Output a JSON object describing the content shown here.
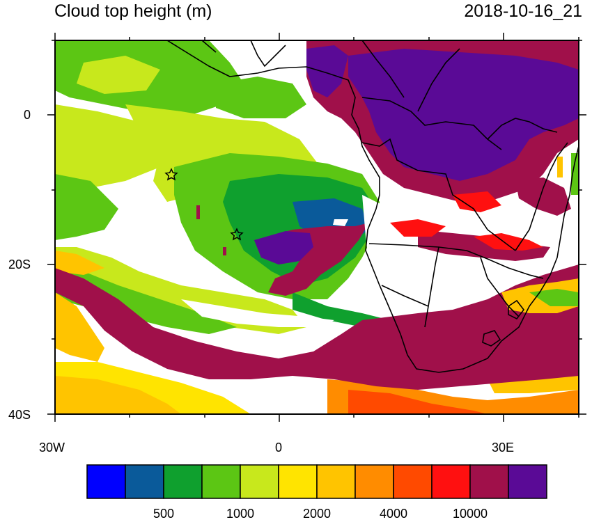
{
  "title": "Cloud top height (m)",
  "timestamp": "2018-10-16_21",
  "map": {
    "extent": {
      "lon": [
        -30,
        40
      ],
      "lat": [
        -40,
        10
      ]
    },
    "lon_ticks": [
      "30W",
      "0",
      "30E"
    ],
    "lat_ticks": [
      "0",
      "20S",
      "40S"
    ],
    "markers": [
      "star",
      "star"
    ]
  },
  "colorbar": {
    "colors": [
      "#0000ff",
      "#0a5a9a",
      "#0fa02e",
      "#5cc614",
      "#c8e81c",
      "#ffe400",
      "#ffc400",
      "#ff8c00",
      "#ff4a00",
      "#ff1010",
      "#a0104a",
      "#5a0a96"
    ],
    "labels": [
      "500",
      "1000",
      "2000",
      "4000",
      "10000"
    ]
  }
}
